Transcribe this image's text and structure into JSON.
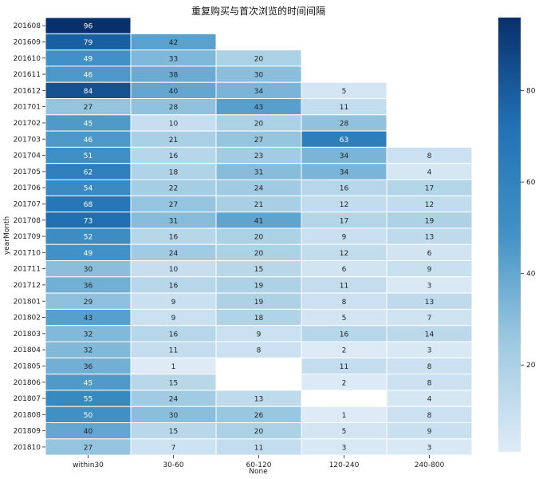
{
  "chart_data": {
    "type": "heatmap",
    "title": "重复购买与首次浏览的时间间隔",
    "xlabel": "None",
    "ylabel": "yearMonth",
    "colormap": "Blues",
    "colorbar": {
      "vmin": 1,
      "vmax": 96,
      "ticks": [
        20,
        40,
        60,
        80
      ]
    },
    "x_categories": [
      "within30",
      "30-60",
      "60-120",
      "120-240",
      "240-800"
    ],
    "y_categories": [
      "201608",
      "201609",
      "201610",
      "201611",
      "201612",
      "201701",
      "201702",
      "201703",
      "201704",
      "201705",
      "201706",
      "201707",
      "201708",
      "201709",
      "201710",
      "201711",
      "201712",
      "201801",
      "201802",
      "201803",
      "201804",
      "201805",
      "201806",
      "201807",
      "201808",
      "201809",
      "201810"
    ],
    "values": [
      [
        96,
        null,
        null,
        null,
        null
      ],
      [
        79,
        42,
        null,
        null,
        null
      ],
      [
        49,
        33,
        20,
        null,
        null
      ],
      [
        46,
        38,
        30,
        null,
        null
      ],
      [
        84,
        40,
        34,
        5,
        null
      ],
      [
        27,
        28,
        43,
        11,
        null
      ],
      [
        45,
        10,
        20,
        28,
        null
      ],
      [
        46,
        21,
        27,
        63,
        null
      ],
      [
        51,
        16,
        23,
        34,
        8
      ],
      [
        62,
        18,
        31,
        34,
        4
      ],
      [
        54,
        22,
        24,
        16,
        17
      ],
      [
        68,
        27,
        21,
        12,
        12
      ],
      [
        73,
        31,
        41,
        17,
        19
      ],
      [
        52,
        16,
        20,
        9,
        13
      ],
      [
        49,
        24,
        20,
        12,
        6
      ],
      [
        30,
        10,
        15,
        6,
        9
      ],
      [
        36,
        16,
        19,
        11,
        3
      ],
      [
        29,
        9,
        19,
        8,
        13
      ],
      [
        43,
        9,
        18,
        5,
        7
      ],
      [
        32,
        16,
        9,
        16,
        14
      ],
      [
        32,
        11,
        8,
        2,
        3
      ],
      [
        36,
        1,
        null,
        11,
        8
      ],
      [
        45,
        15,
        null,
        2,
        8
      ],
      [
        55,
        24,
        13,
        null,
        4
      ],
      [
        50,
        30,
        26,
        1,
        8
      ],
      [
        40,
        15,
        20,
        5,
        9
      ],
      [
        27,
        7,
        11,
        3,
        3
      ]
    ]
  }
}
